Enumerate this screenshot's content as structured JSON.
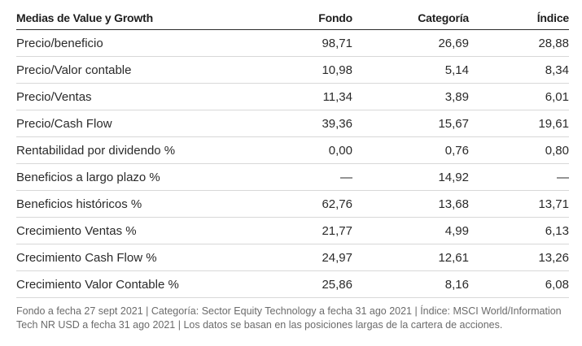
{
  "table": {
    "headers": {
      "name": "Medias de Value y Growth",
      "fondo": "Fondo",
      "categoria": "Categoría",
      "indice": "Índice"
    },
    "rows": [
      {
        "name": "Precio/beneficio",
        "fondo": "98,71",
        "categoria": "26,69",
        "indice": "28,88"
      },
      {
        "name": "Precio/Valor contable",
        "fondo": "10,98",
        "categoria": "5,14",
        "indice": "8,34"
      },
      {
        "name": "Precio/Ventas",
        "fondo": "11,34",
        "categoria": "3,89",
        "indice": "6,01"
      },
      {
        "name": "Precio/Cash Flow",
        "fondo": "39,36",
        "categoria": "15,67",
        "indice": "19,61"
      },
      {
        "name": "Rentabilidad por dividendo %",
        "fondo": "0,00",
        "categoria": "0,76",
        "indice": "0,80"
      },
      {
        "name": "Beneficios a largo plazo %",
        "fondo": "—",
        "categoria": "14,92",
        "indice": "—"
      },
      {
        "name": "Beneficios históricos %",
        "fondo": "62,76",
        "categoria": "13,68",
        "indice": "13,71"
      },
      {
        "name": "Crecimiento Ventas %",
        "fondo": "21,77",
        "categoria": "4,99",
        "indice": "6,13"
      },
      {
        "name": "Crecimiento Cash Flow %",
        "fondo": "24,97",
        "categoria": "12,61",
        "indice": "13,26"
      },
      {
        "name": "Crecimiento Valor Contable %",
        "fondo": "25,86",
        "categoria": "8,16",
        "indice": "6,08"
      }
    ]
  },
  "footnote": "Fondo a fecha 27 sept 2021 | Categoría: Sector Equity Technology a fecha 31 ago 2021 | Índice: MSCI World/Information Tech NR USD a fecha 31 ago 2021 | Los datos se basan en las posiciones largas de la cartera de acciones."
}
